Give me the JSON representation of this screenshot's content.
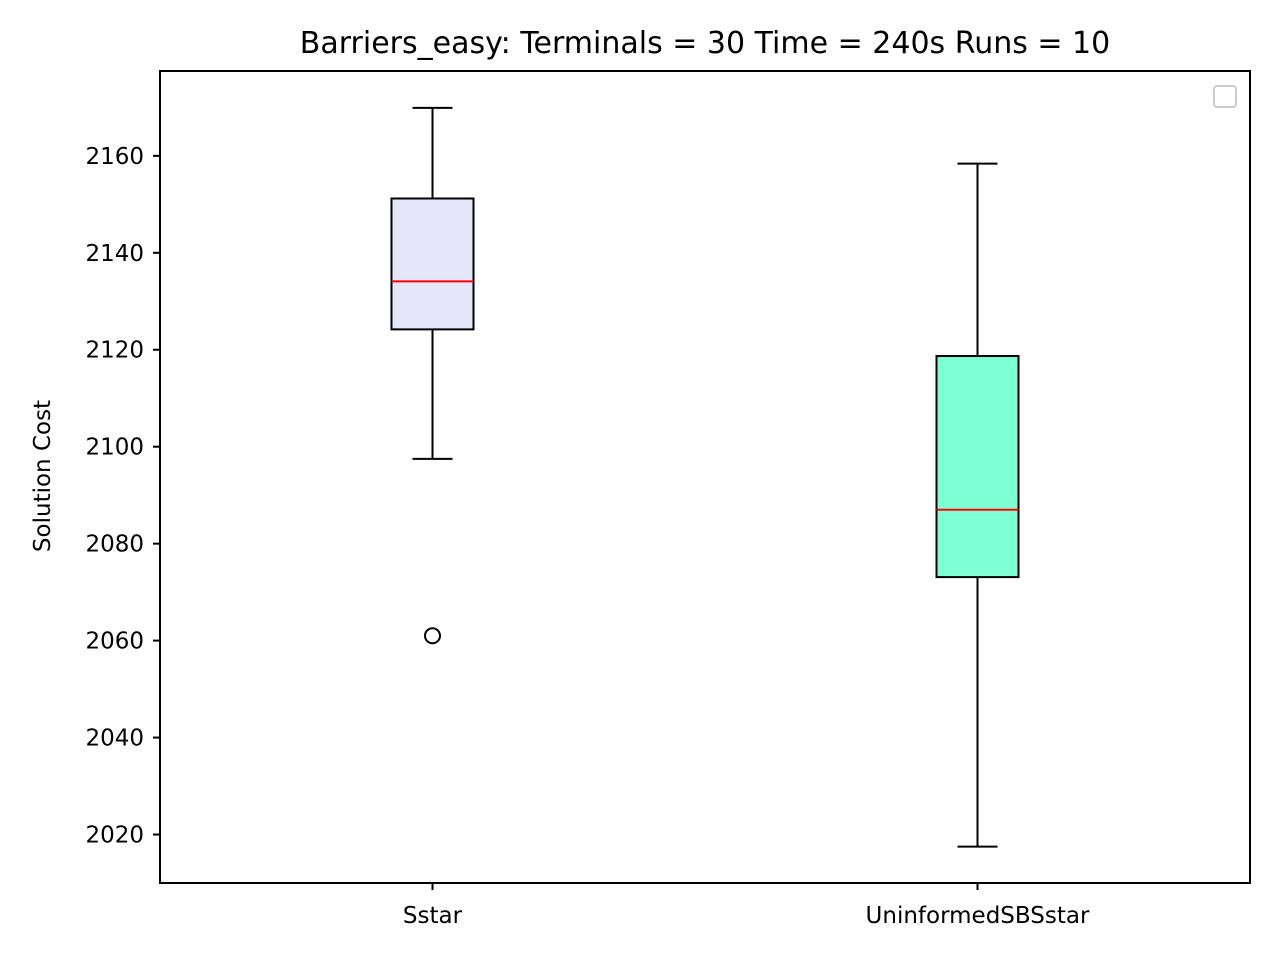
{
  "chart_data": {
    "type": "box",
    "title": "Barriers_easy:  Terminals = 30  Time = 240s  Runs = 10",
    "xlabel": "",
    "ylabel": "Solution Cost",
    "ylim": [
      2010,
      2177.5
    ],
    "yticks": [
      "2020",
      "2040",
      "2060",
      "2080",
      "2100",
      "2120",
      "2140",
      "2160"
    ],
    "categories": [
      "Sstar",
      "UninformedSBSstar"
    ],
    "boxes": [
      {
        "category": "Sstar",
        "whisker_low": 2097.5,
        "q1": 2124.2,
        "median": 2134.1,
        "q3": 2151.2,
        "whisker_high": 2169.9,
        "outliers": [
          2061
        ],
        "fill": "#e6e6fa"
      },
      {
        "category": "UninformedSBSstar",
        "whisker_low": 2017.5,
        "q1": 2073.1,
        "median": 2087.0,
        "q3": 2118.7,
        "whisker_high": 2158.4,
        "outliers": [],
        "fill": "#7fffd4"
      }
    ],
    "median_color": "#ff0000",
    "grid": false,
    "legend": "top-right (empty)"
  }
}
